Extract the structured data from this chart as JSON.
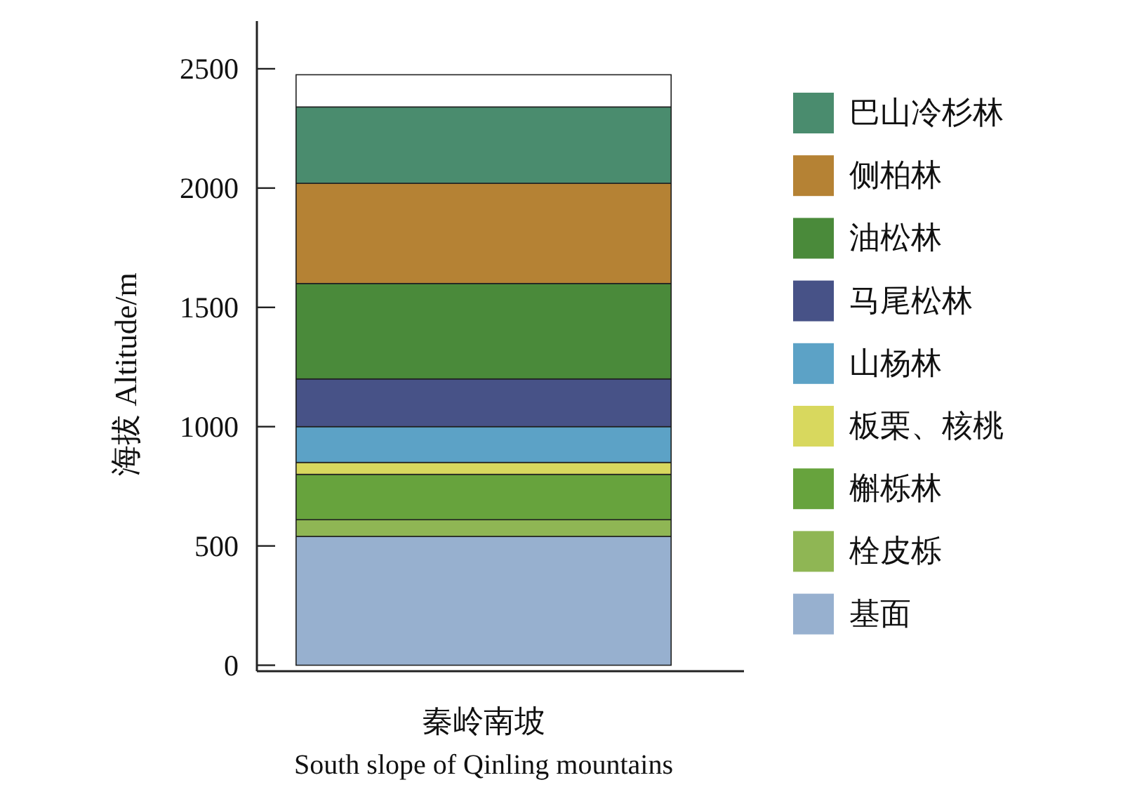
{
  "chart_data": {
    "type": "bar",
    "stacked": true,
    "categories": [
      "秦岭南坡"
    ],
    "xlabel": "South slope of Qinling mountains",
    "ylabel": "海拔 Altitude/m",
    "ylim": [
      -25,
      2700
    ],
    "yticks": [
      0,
      500,
      1000,
      1500,
      2000,
      2500
    ],
    "grid": false,
    "legend": "right",
    "series": [
      {
        "name": "基面",
        "color": "#97b0cf",
        "values": [
          540
        ]
      },
      {
        "name": "栓皮栎",
        "color": "#8fb654",
        "values": [
          70
        ]
      },
      {
        "name": "槲栎林",
        "color": "#67a33d",
        "values": [
          190
        ]
      },
      {
        "name": "板栗、核桃",
        "color": "#d8d85e",
        "values": [
          50
        ]
      },
      {
        "name": "山杨林",
        "color": "#5ca2c6",
        "values": [
          150
        ]
      },
      {
        "name": "马尾松林",
        "color": "#475287",
        "values": [
          200
        ]
      },
      {
        "name": "油松林",
        "color": "#4a8a3a",
        "values": [
          400
        ]
      },
      {
        "name": "侧柏林",
        "color": "#b58234",
        "values": [
          420
        ]
      },
      {
        "name": "巴山冷杉林",
        "color": "#4a8c6e",
        "values": [
          320
        ]
      },
      {
        "color": "#ffffff",
        "values": [
          135
        ]
      }
    ]
  }
}
